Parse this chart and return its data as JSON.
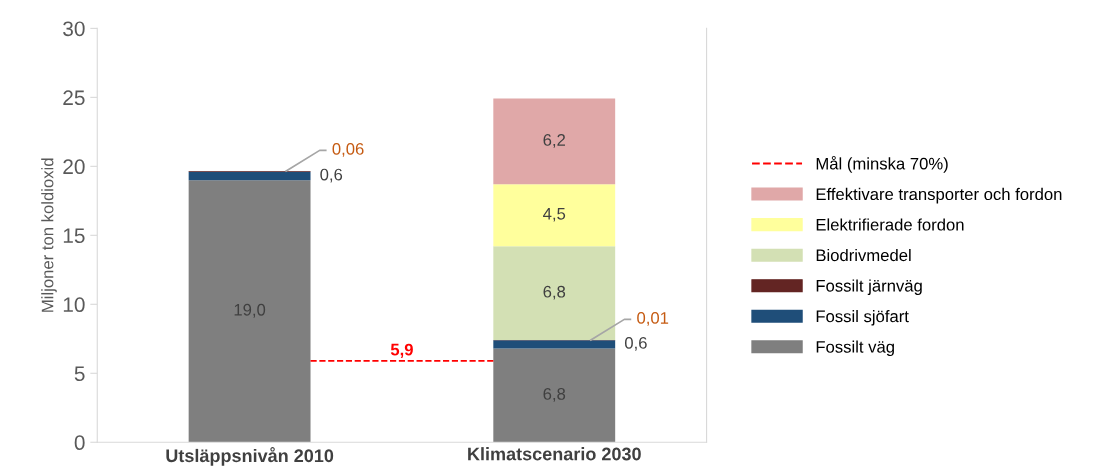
{
  "chart_data": {
    "type": "bar",
    "stacked": true,
    "ylabel": "Miljoner ton koldioxid",
    "categories": [
      "Utsläppsnivån 2010",
      "Klimatscenario 2030"
    ],
    "ylim": [
      0,
      30
    ],
    "yticks": [
      0,
      5,
      10,
      15,
      20,
      25,
      30
    ],
    "grid": false,
    "legend": "right",
    "series": [
      {
        "name": "Fossilt väg",
        "color": "#7f7f7f",
        "values": [
          19.0,
          6.8
        ],
        "value_labels": [
          "19,0",
          "6,8"
        ]
      },
      {
        "name": "Fossil sjöfart",
        "color": "#1f4e79",
        "values": [
          0.6,
          0.6
        ],
        "value_labels": [
          "0,6",
          "0,6"
        ]
      },
      {
        "name": "Fossilt järnväg",
        "color": "#632523",
        "values": [
          0.06,
          0.01
        ],
        "value_labels": [
          "0,06",
          "0,01"
        ]
      },
      {
        "name": "Biodrivmedel",
        "color": "#d3e0b4",
        "values": [
          null,
          6.8
        ],
        "value_labels": [
          null,
          "6,8"
        ]
      },
      {
        "name": "Elektrifierade fordon",
        "color": "#ffff9c",
        "values": [
          null,
          4.5
        ],
        "value_labels": [
          null,
          "4,5"
        ]
      },
      {
        "name": "Effektivare transporter och fordon",
        "color": "#e0a8a8",
        "values": [
          null,
          6.2
        ],
        "value_labels": [
          null,
          "6,2"
        ]
      }
    ],
    "ref_lines": [
      {
        "axis": "y",
        "value": 5.9,
        "label": "Mål (minska 70%)",
        "color": "#ff0000",
        "line_style": "dashed"
      }
    ],
    "annotations": [
      {
        "text": "5,9",
        "y": 5.9
      }
    ]
  }
}
